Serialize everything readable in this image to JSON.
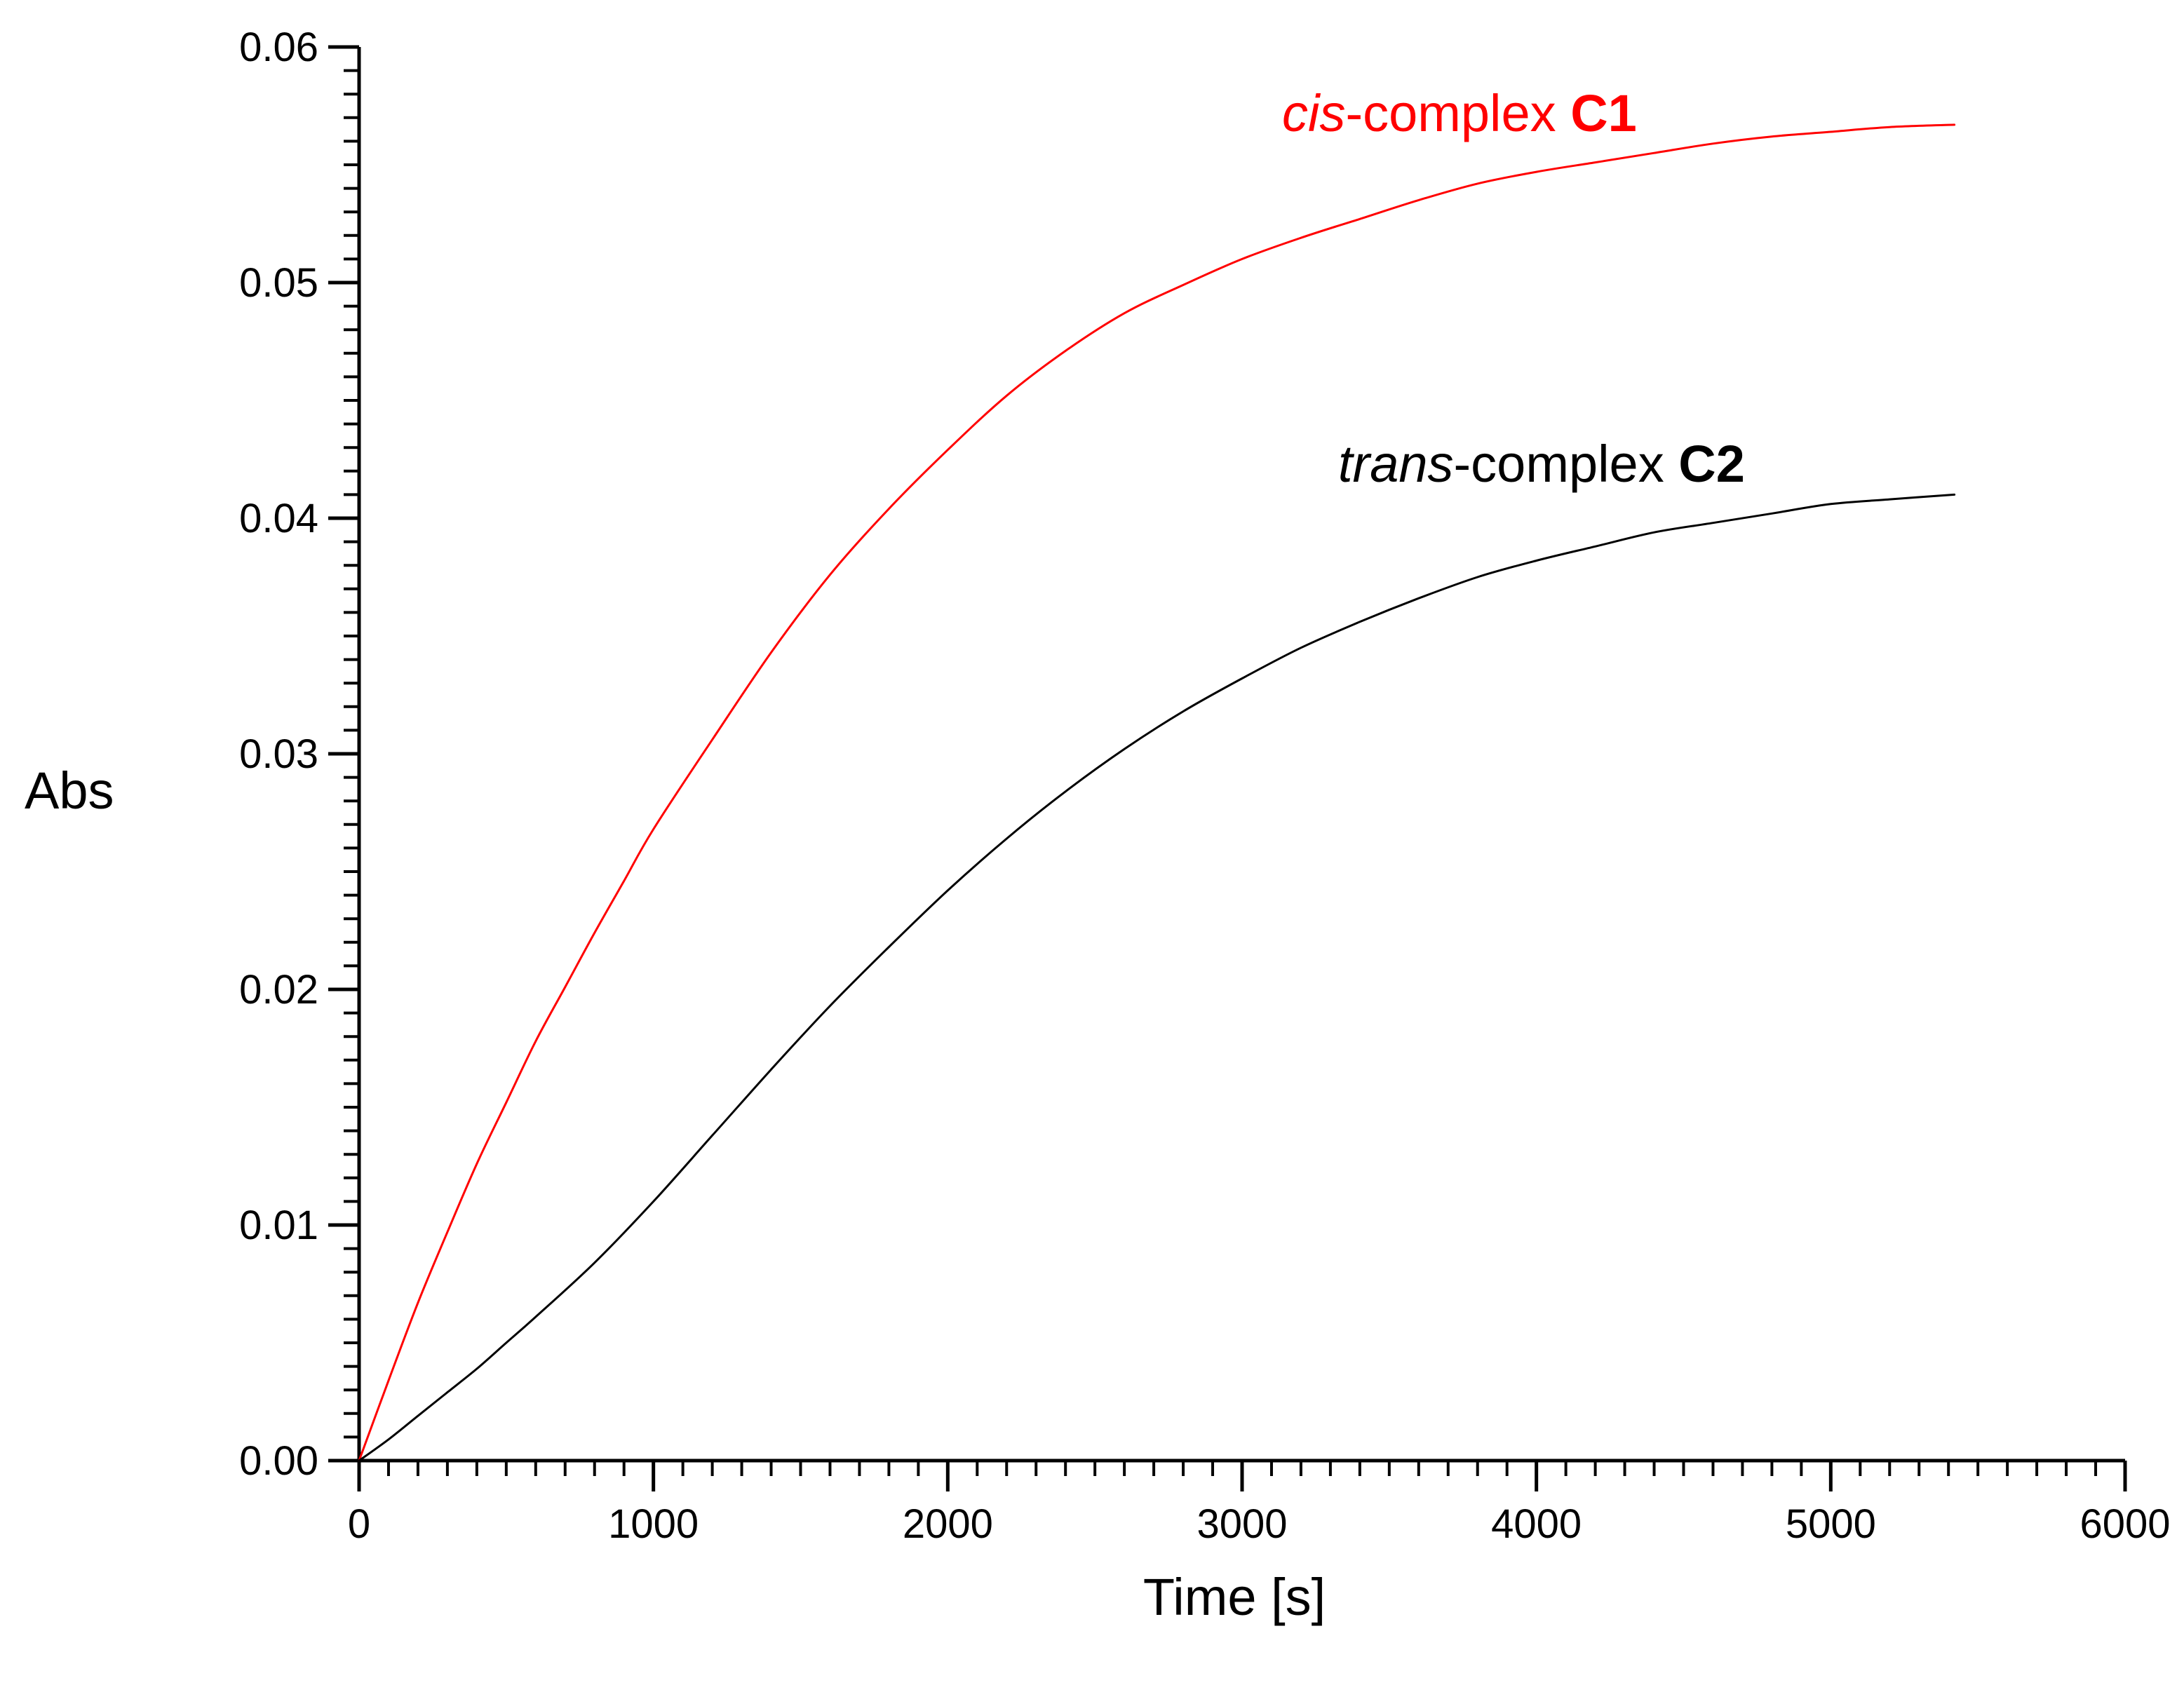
{
  "chart_data": {
    "type": "line",
    "title": "",
    "xlabel": "Time [s]",
    "ylabel": "Abs",
    "xlim": [
      0,
      6000
    ],
    "ylim": [
      0,
      0.06
    ],
    "x_ticks": [
      0,
      1000,
      2000,
      3000,
      4000,
      5000,
      6000
    ],
    "x_tick_labels": [
      "0",
      "1000",
      "2000",
      "3000",
      "4000",
      "5000",
      "6000"
    ],
    "y_ticks": [
      0,
      0.01,
      0.02,
      0.03,
      0.04,
      0.05,
      0.06
    ],
    "y_tick_labels": [
      "0.00",
      "0.01",
      "0.02",
      "0.03",
      "0.04",
      "0.05",
      "0.06"
    ],
    "grid": false,
    "legend": "none (series labeled inline near curve ends)",
    "series": [
      {
        "name_prefix": "cis",
        "name_middle": "-complex ",
        "name_suffix": "C1",
        "color": "#ff0000",
        "x": [
          0,
          100,
          200,
          300,
          400,
          500,
          600,
          700,
          800,
          900,
          1000,
          1200,
          1400,
          1600,
          1800,
          2000,
          2200,
          2400,
          2600,
          2800,
          3000,
          3200,
          3400,
          3600,
          3800,
          4000,
          4200,
          4400,
          4600,
          4800,
          5000,
          5200,
          5420
        ],
        "y": [
          0.0,
          0.0034,
          0.0067,
          0.0097,
          0.0126,
          0.0152,
          0.0178,
          0.0201,
          0.0224,
          0.0246,
          0.0268,
          0.0306,
          0.0343,
          0.0376,
          0.0404,
          0.0429,
          0.0452,
          0.0471,
          0.0487,
          0.0499,
          0.051,
          0.0519,
          0.0527,
          0.0535,
          0.0542,
          0.0547,
          0.0551,
          0.0555,
          0.0559,
          0.0562,
          0.0564,
          0.0566,
          0.0567
        ]
      },
      {
        "name_prefix": "trans",
        "name_middle": "-complex ",
        "name_suffix": "C2",
        "color": "#000000",
        "x": [
          0,
          100,
          200,
          300,
          400,
          500,
          600,
          800,
          1000,
          1200,
          1400,
          1600,
          1800,
          2000,
          2200,
          2400,
          2600,
          2800,
          3000,
          3200,
          3400,
          3600,
          3800,
          4000,
          4200,
          4400,
          4600,
          4800,
          5000,
          5200,
          5420
        ],
        "y": [
          0.0,
          0.0009,
          0.0019,
          0.0029,
          0.0039,
          0.005,
          0.0061,
          0.0084,
          0.011,
          0.0138,
          0.0166,
          0.0193,
          0.0218,
          0.0242,
          0.0264,
          0.0284,
          0.0302,
          0.0318,
          0.0332,
          0.0345,
          0.0356,
          0.0366,
          0.0375,
          0.0382,
          0.0388,
          0.0394,
          0.0398,
          0.0402,
          0.0406,
          0.0408,
          0.041
        ]
      }
    ]
  }
}
